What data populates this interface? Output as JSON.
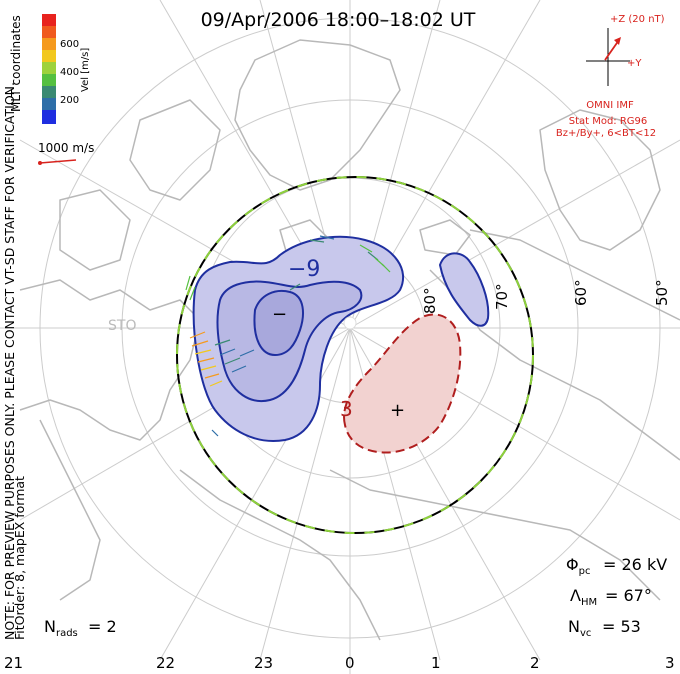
{
  "title": "09/Apr/2006 18:00–18:02 UT",
  "coordinates_label": "MLT coordinates",
  "note_label": "NOTE: FOR PREVIEW PURPOSES ONLY. PLEASE CONTACT VT-SD STAFF FOR VERIFICATION.",
  "fit_label": "FitOrder: 8, mapEX format",
  "colorbar": {
    "label": "Vel [m/s]",
    "ticks": [
      "600",
      "400",
      "200"
    ],
    "colors": [
      "#e8231e",
      "#f05a1e",
      "#f59a1e",
      "#f2c81e",
      "#9ed23c",
      "#55c040",
      "#3a8a72",
      "#2e6ea8",
      "#1f2ee0"
    ]
  },
  "scale_vector_label": "1000 m/s",
  "imf": {
    "z_label": "+Z (20 nT)",
    "y_label": "+Y",
    "source_label": "OMNI IMF",
    "stat_mod_label": "Stat Mod: RG96",
    "condition_label": "Bz+/By+, 6<BT<12",
    "color": "#d8231e"
  },
  "latitude_labels": [
    "80°",
    "70°",
    "60°",
    "50°"
  ],
  "mlt_labels": [
    "21",
    "22",
    "23",
    "0",
    "1",
    "2",
    "3"
  ],
  "contour_labels": {
    "negative": "−9",
    "positive": "3"
  },
  "cell_markers": {
    "min": "−",
    "max": "+"
  },
  "station_label": "STO",
  "stats": {
    "phi_symbol": "Φ",
    "phi_sub": "pc",
    "phi_value": "= 26 kV",
    "lambda_symbol": "Λ",
    "lambda_sub": "HM",
    "lambda_value": "= 67°",
    "nvc_symbol": "N",
    "nvc_sub": "vc",
    "nvc_value": "= 53",
    "nrads_symbol": "N",
    "nrads_sub": "rads",
    "nrads_value": "= 2"
  },
  "colors": {
    "coast": "#b8b8b8",
    "grid": "#cccccc",
    "negative_contour": "#1f2fa0",
    "negative_fill": "#c8c8ec",
    "positive_contour": "#b01e1e",
    "positive_fill": "#f2d2d0",
    "hmb_green": "#8ed23c"
  }
}
